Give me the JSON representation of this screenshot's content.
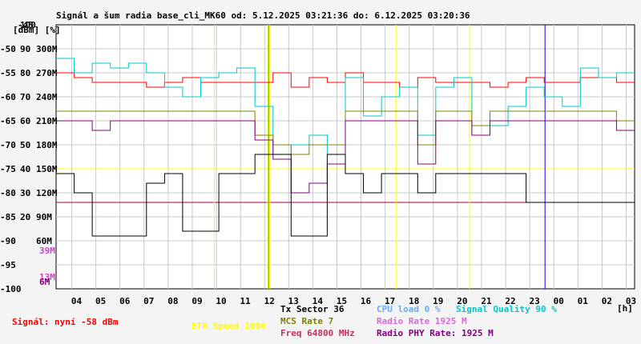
{
  "chart_data": {
    "type": "line",
    "title": "Signál a šum radia base_cli_MK60 od: 5.12.2025 03:21:36 do: 6.12.2025 03:20:36",
    "y_left_label": "[dBm] [%]",
    "y_left_ticks": [
      "-45",
      "-50",
      "-55",
      "-60",
      "-65",
      "-70",
      "-75",
      "-80",
      "-85",
      "-90",
      "-95",
      "-100"
    ],
    "y_pct_ticks": [
      "100",
      "90",
      "80",
      "70",
      "60",
      "50",
      "40",
      "30",
      "20",
      "",
      "",
      ""
    ],
    "y_rate_ticks": [
      "",
      "300M",
      "270M",
      "240M",
      "210M",
      "180M",
      "150M",
      "120M",
      "90M",
      "60M",
      "",
      ""
    ],
    "extra_rate_labels": [
      {
        "text": "39M",
        "color": "#cc44cc"
      },
      {
        "text": "13M",
        "color": "#cc44cc"
      },
      {
        "text": "6M",
        "color": "#800080"
      }
    ],
    "x_ticks": [
      "04",
      "05",
      "06",
      "07",
      "08",
      "09",
      "10",
      "11",
      "12",
      "13",
      "14",
      "15",
      "16",
      "17",
      "18",
      "19",
      "20",
      "21",
      "22",
      "23",
      "00",
      "01",
      "02",
      "03"
    ],
    "x_unit": "[h]",
    "ylim": [
      -100,
      -45
    ],
    "reference_lines": [
      {
        "y": -75,
        "color": "#ffff00"
      },
      {
        "y": -82,
        "color": "#a00040"
      }
    ],
    "vertical_markers": [
      {
        "x": "09:55",
        "color": "#ffff00"
      },
      {
        "x": "12:08",
        "color": "#ffff00"
      },
      {
        "x": "12:12",
        "color": "#ffff00"
      },
      {
        "x": "17:27",
        "color": "#ffff00"
      },
      {
        "x": "20:30",
        "color": "#ffff00"
      },
      {
        "x": "12:10",
        "color": "#00cc00"
      },
      {
        "x": "23:38",
        "color": "#0000ff"
      }
    ],
    "series": [
      {
        "color": "#ff0000",
        "values": [
          -55,
          -56,
          -57,
          -57,
          -57,
          -58,
          -57,
          -56,
          -57,
          -57,
          -57,
          -57,
          -55,
          -58,
          -56,
          -57,
          -55,
          -57,
          -57,
          -58,
          -56,
          -57,
          -57,
          -57,
          -58,
          -57,
          -56,
          -57,
          -57,
          -56,
          -56,
          -57
        ]
      },
      {
        "color": "#00c8c8",
        "values": [
          -52,
          -55,
          -53,
          -54,
          -53,
          -55,
          -58,
          -60,
          -56,
          -55,
          -54,
          -62,
          -72,
          -70,
          -68,
          -72,
          -56,
          -64,
          -60,
          -58,
          -68,
          -58,
          -56,
          -68,
          -66,
          -62,
          -58,
          -60,
          -62,
          -54,
          -56,
          -55
        ]
      },
      {
        "color": "#808000",
        "values": [
          -63,
          -63,
          -63,
          -63,
          -63,
          -63,
          -63,
          -63,
          -63,
          -63,
          -63,
          -68,
          -70,
          -72,
          -70,
          -70,
          -63,
          -63,
          -63,
          -63,
          -70,
          -63,
          -63,
          -66,
          -63,
          -63,
          -63,
          -63,
          -63,
          -63,
          -63,
          -65
        ]
      },
      {
        "color": "#800080",
        "values": [
          -65,
          -65,
          -67,
          -65,
          -65,
          -65,
          -65,
          -65,
          -65,
          -65,
          -65,
          -69,
          -73,
          -80,
          -78,
          -74,
          -65,
          -65,
          -65,
          -65,
          -74,
          -65,
          -65,
          -68,
          -65,
          -65,
          -65,
          -65,
          -65,
          -65,
          -65,
          -67
        ]
      },
      {
        "color": "#000000",
        "values": [
          -76,
          -80,
          -89,
          -89,
          -89,
          -78,
          -76,
          -88,
          -88,
          -76,
          -76,
          -72,
          -72,
          -89,
          -89,
          -72,
          -76,
          -80,
          -76,
          -76,
          -80,
          -76,
          -76,
          -76,
          -76,
          -76,
          -82,
          -82,
          -82,
          -82,
          -82,
          -82
        ]
      }
    ]
  },
  "legend": {
    "signal_now": "Signál: nyní -58 dBm",
    "eth_speed": "ETH Speed 1000",
    "tx_sector": "Tx Sector 36",
    "mcs_rate": "MCS Rate 7",
    "freq": "Freq 64800 MHz",
    "cpu_load": "CPU load 0 %",
    "signal_quality": "Signal Quality 90 %",
    "radio_rate": "Radio Rate 1925 M",
    "radio_phy_rate": "Radio PHY Rate: 1925 M"
  },
  "colors": {
    "signal_now": "#ff0000",
    "eth_speed": "#ffff00",
    "tx_sector": "#000000",
    "mcs_rate": "#808000",
    "freq": "#c03060",
    "cpu_load": "#66aaff",
    "signal_quality": "#00c8c8",
    "radio_rate": "#dd66dd",
    "radio_phy_rate": "#800080"
  }
}
